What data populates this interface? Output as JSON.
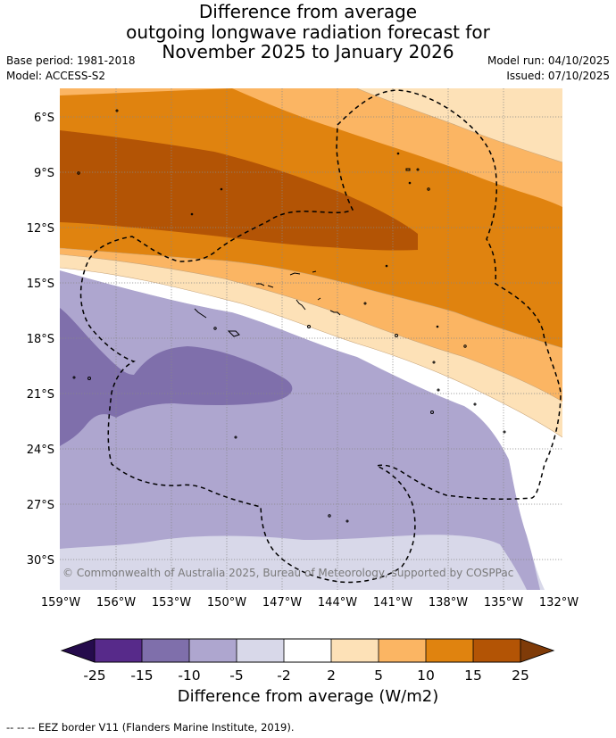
{
  "title": {
    "line1": "Difference from average",
    "line2": "outgoing longwave radiation forecast for",
    "line3": "November 2025 to January 2026"
  },
  "metadata": {
    "base_period": "Base period: 1981-2018",
    "model": "Model: ACCESS-S2",
    "model_run": "Model run: 04/10/2025",
    "issued": "Issued: 07/10/2025"
  },
  "map": {
    "latitude_labels": [
      "6°S",
      "9°S",
      "12°S",
      "15°S",
      "18°S",
      "21°S",
      "24°S",
      "27°S",
      "30°S"
    ],
    "longitude_labels": [
      "159°W",
      "156°W",
      "153°W",
      "150°W",
      "147°W",
      "144°W",
      "141°W",
      "138°W",
      "135°W",
      "132°W"
    ],
    "copyright": "© Commonwealth of Australia 2025, Bureau of Meteorology, supported by COSPPac"
  },
  "colorbar": {
    "ticks": [
      "-25",
      "-15",
      "-10",
      "-5",
      "-2",
      "2",
      "5",
      "10",
      "15",
      "25"
    ],
    "colors": [
      "#250b4c",
      "#572a8a",
      "#7f6fab",
      "#aea6cf",
      "#d8d8e9",
      "#ffffff",
      "#fde1b7",
      "#fbb563",
      "#e0830f",
      "#b35405",
      "#7f3b08"
    ],
    "title": "Difference from average (W/m2)"
  },
  "footnote": "--  --  -- EEZ border V11 (Flanders Marine Institute, 2019)."
}
